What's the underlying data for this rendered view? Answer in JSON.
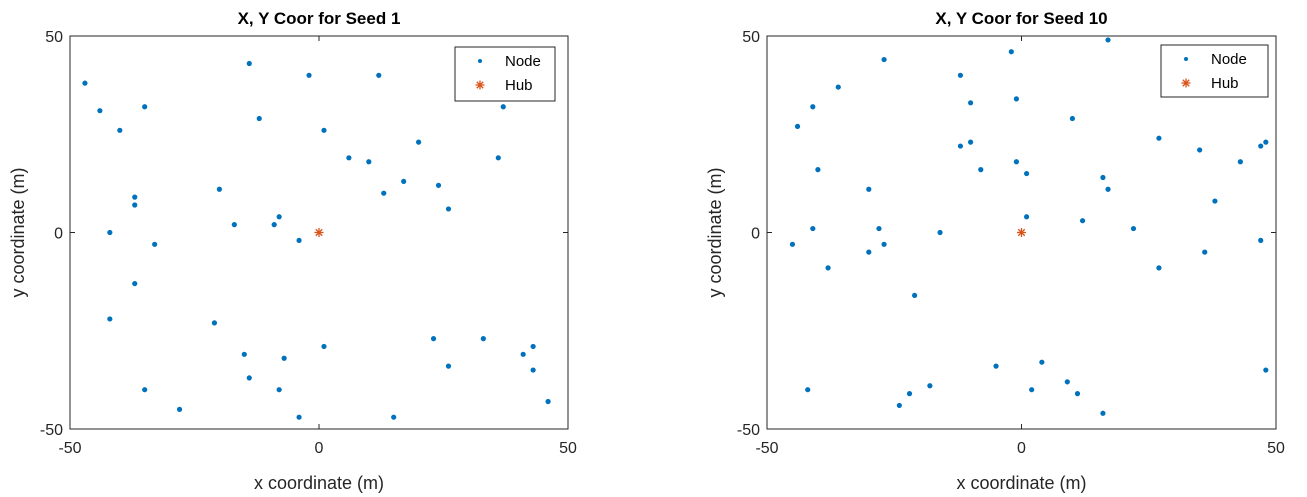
{
  "chart_data": [
    {
      "type": "scatter",
      "title": "X, Y Coor for Seed 1",
      "xlabel": "x coordinate (m)",
      "ylabel": "y coordinate (m)",
      "xlim": [
        -50,
        50
      ],
      "ylim": [
        -50,
        50
      ],
      "xticks": [
        "-50",
        "0",
        "50"
      ],
      "yticks": [
        "50",
        "0",
        "-50"
      ],
      "grid": false,
      "legend_position": "top-right",
      "series": [
        {
          "name": "Node",
          "marker": "dot",
          "color": "#0072bd",
          "points": [
            [
              -47,
              38
            ],
            [
              -44,
              31
            ],
            [
              -40,
              26
            ],
            [
              -35,
              32
            ],
            [
              -37,
              9
            ],
            [
              -37,
              7
            ],
            [
              -42,
              0
            ],
            [
              -33,
              -3
            ],
            [
              -37,
              -13
            ],
            [
              -42,
              -22
            ],
            [
              -35,
              -40
            ],
            [
              -28,
              -45
            ],
            [
              -14,
              43
            ],
            [
              -12,
              29
            ],
            [
              -2,
              40
            ],
            [
              12,
              40
            ],
            [
              1,
              26
            ],
            [
              -20,
              11
            ],
            [
              -17,
              2
            ],
            [
              -9,
              2
            ],
            [
              -8,
              4
            ],
            [
              -4,
              -2
            ],
            [
              -21,
              -23
            ],
            [
              -15,
              -31
            ],
            [
              -14,
              -37
            ],
            [
              -7,
              -32
            ],
            [
              -8,
              -40
            ],
            [
              -4,
              -47
            ],
            [
              1,
              -29
            ],
            [
              6,
              19
            ],
            [
              10,
              18
            ],
            [
              13,
              10
            ],
            [
              17,
              13
            ],
            [
              20,
              23
            ],
            [
              24,
              12
            ],
            [
              26,
              6
            ],
            [
              37,
              32
            ],
            [
              36,
              19
            ],
            [
              23,
              -27
            ],
            [
              26,
              -34
            ],
            [
              33,
              -27
            ],
            [
              41,
              -31
            ],
            [
              43,
              -29
            ],
            [
              43,
              -35
            ],
            [
              46,
              -43
            ],
            [
              15,
              -47
            ]
          ]
        },
        {
          "name": "Hub",
          "marker": "asterisk",
          "color": "#d95319",
          "points": [
            [
              0,
              0
            ]
          ]
        }
      ]
    },
    {
      "type": "scatter",
      "title": "X, Y Coor for Seed 10",
      "xlabel": "x coordinate (m)",
      "ylabel": "y coordinate (m)",
      "xlim": [
        -50,
        50
      ],
      "ylim": [
        -50,
        50
      ],
      "xticks": [
        "-50",
        "0",
        "50"
      ],
      "yticks": [
        "50",
        "0",
        "-50"
      ],
      "grid": false,
      "legend_position": "top-right",
      "series": [
        {
          "name": "Node",
          "marker": "dot",
          "color": "#0072bd",
          "points": [
            [
              -45,
              -3
            ],
            [
              -44,
              27
            ],
            [
              -42,
              -40
            ],
            [
              -41,
              32
            ],
            [
              -41,
              1
            ],
            [
              -40,
              16
            ],
            [
              -38,
              -9
            ],
            [
              -36,
              37
            ],
            [
              -30,
              11
            ],
            [
              -30,
              -5
            ],
            [
              -28,
              1
            ],
            [
              -27,
              44
            ],
            [
              -27,
              -3
            ],
            [
              -24,
              -44
            ],
            [
              -22,
              -41
            ],
            [
              -21,
              -16
            ],
            [
              -18,
              -39
            ],
            [
              -16,
              0
            ],
            [
              -12,
              40
            ],
            [
              -12,
              22
            ],
            [
              -10,
              33
            ],
            [
              -10,
              23
            ],
            [
              -8,
              16
            ],
            [
              -5,
              -34
            ],
            [
              -2,
              46
            ],
            [
              -1,
              34
            ],
            [
              -1,
              18
            ],
            [
              1,
              15
            ],
            [
              1,
              4
            ],
            [
              2,
              -40
            ],
            [
              4,
              -33
            ],
            [
              9,
              -38
            ],
            [
              10,
              29
            ],
            [
              11,
              -41
            ],
            [
              12,
              3
            ],
            [
              16,
              14
            ],
            [
              16,
              -46
            ],
            [
              17,
              11
            ],
            [
              17,
              49
            ],
            [
              22,
              1
            ],
            [
              27,
              24
            ],
            [
              27,
              -9
            ],
            [
              35,
              21
            ],
            [
              36,
              -5
            ],
            [
              38,
              8
            ],
            [
              43,
              18
            ],
            [
              47,
              22
            ],
            [
              47,
              -2
            ],
            [
              48,
              23
            ],
            [
              48,
              -35
            ]
          ]
        },
        {
          "name": "Hub",
          "marker": "asterisk",
          "color": "#d95319",
          "points": [
            [
              0,
              0
            ]
          ]
        }
      ]
    }
  ]
}
